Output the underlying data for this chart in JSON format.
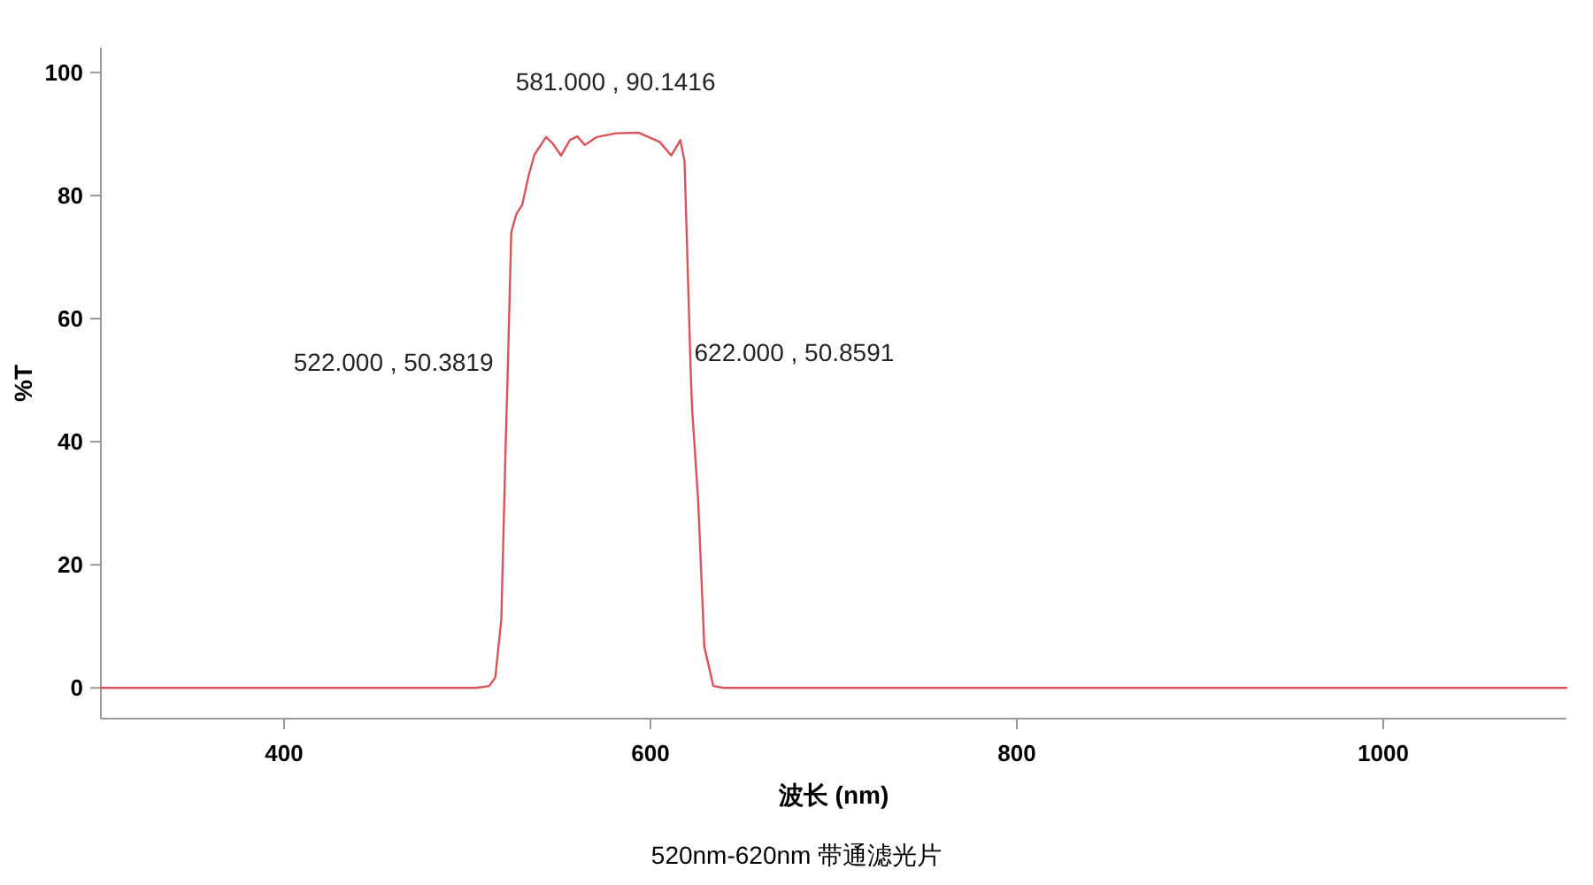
{
  "chart_data": {
    "type": "line",
    "title": "520nm-620nm 带通滤光片",
    "xlabel": "波长 (nm)",
    "ylabel": "%T",
    "x": [
      300,
      505,
      512,
      515.3,
      518.6,
      521,
      522,
      524,
      526.8,
      530,
      533.3,
      536.6,
      543,
      546.5,
      551.2,
      556,
      560,
      564.2,
      570.7,
      581,
      593.5,
      605,
      611.4,
      616.3,
      618.6,
      622,
      622.8,
      626,
      629.4,
      634.3,
      640,
      1100
    ],
    "series": [
      {
        "color": "#d9545a",
        "values": [
          0,
          0,
          0.3,
          1.7,
          11.2,
          40,
          50.4,
          74,
          77,
          78.5,
          83,
          86.6,
          89.5,
          88.5,
          86.5,
          89,
          89.6,
          88.2,
          89.5,
          90.1,
          90.2,
          88.7,
          86.5,
          89,
          85.6,
          50.9,
          45,
          30.6,
          6.7,
          0.3,
          0,
          0
        ]
      }
    ],
    "annotations": [
      {
        "text": "522.000 , 50.3819",
        "x": 522,
        "y": 50.3819
      },
      {
        "text": "581.000 , 90.1416",
        "x": 581,
        "y": 90.1416
      },
      {
        "text": "622.000 , 50.8591",
        "x": 622,
        "y": 50.8591
      }
    ],
    "xlim": [
      300,
      1100
    ],
    "xticks": [
      400,
      600,
      800,
      1000
    ],
    "ylim": [
      -5,
      104
    ],
    "yticks": [
      0,
      20,
      40,
      60,
      80,
      100
    ],
    "grid": false,
    "marker": "none",
    "line_style": "solid"
  }
}
